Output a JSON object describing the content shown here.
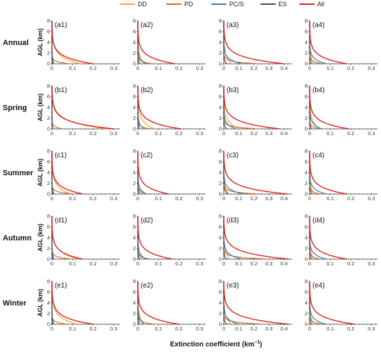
{
  "legend": {
    "position": "top-right",
    "entries": [
      {
        "name": "DD",
        "color": "#f5a623"
      },
      {
        "name": "PD",
        "color": "#d9661f"
      },
      {
        "name": "PC/S",
        "color": "#2b7bbd"
      },
      {
        "name": "ES",
        "color": "#444444"
      },
      {
        "name": "All",
        "color": "#e31a1c"
      }
    ]
  },
  "figure_text": {
    "x_axis_title": "Extinction coefficient (km",
    "x_axis_title_sup": "−1",
    "x_axis_title_end": ")",
    "y_axis_title": "AGL (km)"
  },
  "chart_data": {
    "type": "line",
    "layout": "5x4 grid of small multiples",
    "xlim": [
      0,
      0.33
    ],
    "ylim": [
      0,
      8
    ],
    "x_ticks": [
      "0",
      "0.1",
      "0.2",
      "0.3"
    ],
    "x_ticks_col3": [
      "0",
      "0.1",
      "0.2",
      "0.3",
      "0.4"
    ],
    "y_ticks": [
      "0",
      "2",
      "4",
      "6",
      "8"
    ],
    "series_order": [
      "DD",
      "PD",
      "PC/S",
      "ES",
      "All"
    ],
    "rows": [
      {
        "label": "Annual",
        "panels": [
          {
            "id": "(a1)",
            "x_max": 0.33,
            "surface": {
              "DD": 0.14,
              "PD": 0.08,
              "PC/S": 0.01,
              "ES": 0.005,
              "All": 0.2
            }
          },
          {
            "id": "(a2)",
            "x_max": 0.33,
            "surface": {
              "DD": 0.03,
              "PD": 0.07,
              "PC/S": 0.04,
              "ES": 0.01,
              "All": 0.18
            }
          },
          {
            "id": "(a3)",
            "x_max": 0.45,
            "surface": {
              "DD": 0.05,
              "PD": 0.22,
              "PC/S": 0.12,
              "ES": 0.02,
              "All": 0.4
            }
          },
          {
            "id": "(a4)",
            "x_max": 0.33,
            "surface": {
              "DD": 0.02,
              "PD": 0.06,
              "PC/S": 0.08,
              "ES": 0.01,
              "All": 0.18
            }
          }
        ]
      },
      {
        "label": "Spring",
        "panels": [
          {
            "id": "(b1)",
            "x_max": 0.33,
            "surface": {
              "DD": 0.27,
              "PD": 0.05,
              "PC/S": 0.005,
              "ES": 0.003,
              "All": 0.3
            }
          },
          {
            "id": "(b2)",
            "x_max": 0.33,
            "surface": {
              "DD": 0.08,
              "PD": 0.06,
              "PC/S": 0.03,
              "ES": 0.01,
              "All": 0.21
            }
          },
          {
            "id": "(b3)",
            "x_max": 0.45,
            "surface": {
              "DD": 0.1,
              "PD": 0.22,
              "PC/S": 0.08,
              "ES": 0.02,
              "All": 0.37
            }
          },
          {
            "id": "(b4)",
            "x_max": 0.33,
            "surface": {
              "DD": 0.05,
              "PD": 0.05,
              "PC/S": 0.06,
              "ES": 0.01,
              "All": 0.19
            }
          }
        ]
      },
      {
        "label": "Summer",
        "panels": [
          {
            "id": "(c1)",
            "x_max": 0.33,
            "surface": {
              "DD": 0.09,
              "PD": 0.1,
              "PC/S": 0.01,
              "ES": 0.005,
              "All": 0.15
            }
          },
          {
            "id": "(c2)",
            "x_max": 0.33,
            "surface": {
              "DD": 0.02,
              "PD": 0.05,
              "PC/S": 0.04,
              "ES": 0.01,
              "All": 0.15
            }
          },
          {
            "id": "(c3)",
            "x_max": 0.45,
            "surface": {
              "DD": 0.03,
              "PD": 0.22,
              "PC/S": 0.13,
              "ES": 0.03,
              "All": 0.42
            }
          },
          {
            "id": "(c4)",
            "x_max": 0.33,
            "surface": {
              "DD": 0.02,
              "PD": 0.05,
              "PC/S": 0.08,
              "ES": 0.01,
              "All": 0.18
            }
          }
        ]
      },
      {
        "label": "Autumn",
        "panels": [
          {
            "id": "(d1)",
            "x_max": 0.33,
            "surface": {
              "DD": 0.13,
              "PD": 0.09,
              "PC/S": 0.01,
              "ES": 0.005,
              "All": 0.15
            }
          },
          {
            "id": "(d2)",
            "x_max": 0.33,
            "surface": {
              "DD": 0.02,
              "PD": 0.06,
              "PC/S": 0.04,
              "ES": 0.01,
              "All": 0.17
            }
          },
          {
            "id": "(d3)",
            "x_max": 0.45,
            "surface": {
              "DD": 0.04,
              "PD": 0.28,
              "PC/S": 0.12,
              "ES": 0.02,
              "All": 0.43
            }
          },
          {
            "id": "(d4)",
            "x_max": 0.33,
            "surface": {
              "DD": 0.02,
              "PD": 0.05,
              "PC/S": 0.08,
              "ES": 0.01,
              "All": 0.18
            }
          }
        ]
      },
      {
        "label": "Winter",
        "panels": [
          {
            "id": "(e1)",
            "x_max": 0.33,
            "surface": {
              "DD": 0.12,
              "PD": 0.07,
              "PC/S": 0.01,
              "ES": 0.005,
              "All": 0.2
            }
          },
          {
            "id": "(e2)",
            "x_max": 0.33,
            "surface": {
              "DD": 0.03,
              "PD": 0.08,
              "PC/S": 0.03,
              "ES": 0.01,
              "All": 0.2
            }
          },
          {
            "id": "(e3)",
            "x_max": 0.45,
            "surface": {
              "DD": 0.05,
              "PD": 0.25,
              "PC/S": 0.1,
              "ES": 0.02,
              "All": 0.43
            }
          },
          {
            "id": "(e4)",
            "x_max": 0.33,
            "surface": {
              "DD": 0.02,
              "PD": 0.06,
              "PC/S": 0.08,
              "ES": 0.01,
              "All": 0.22
            }
          }
        ]
      }
    ]
  }
}
